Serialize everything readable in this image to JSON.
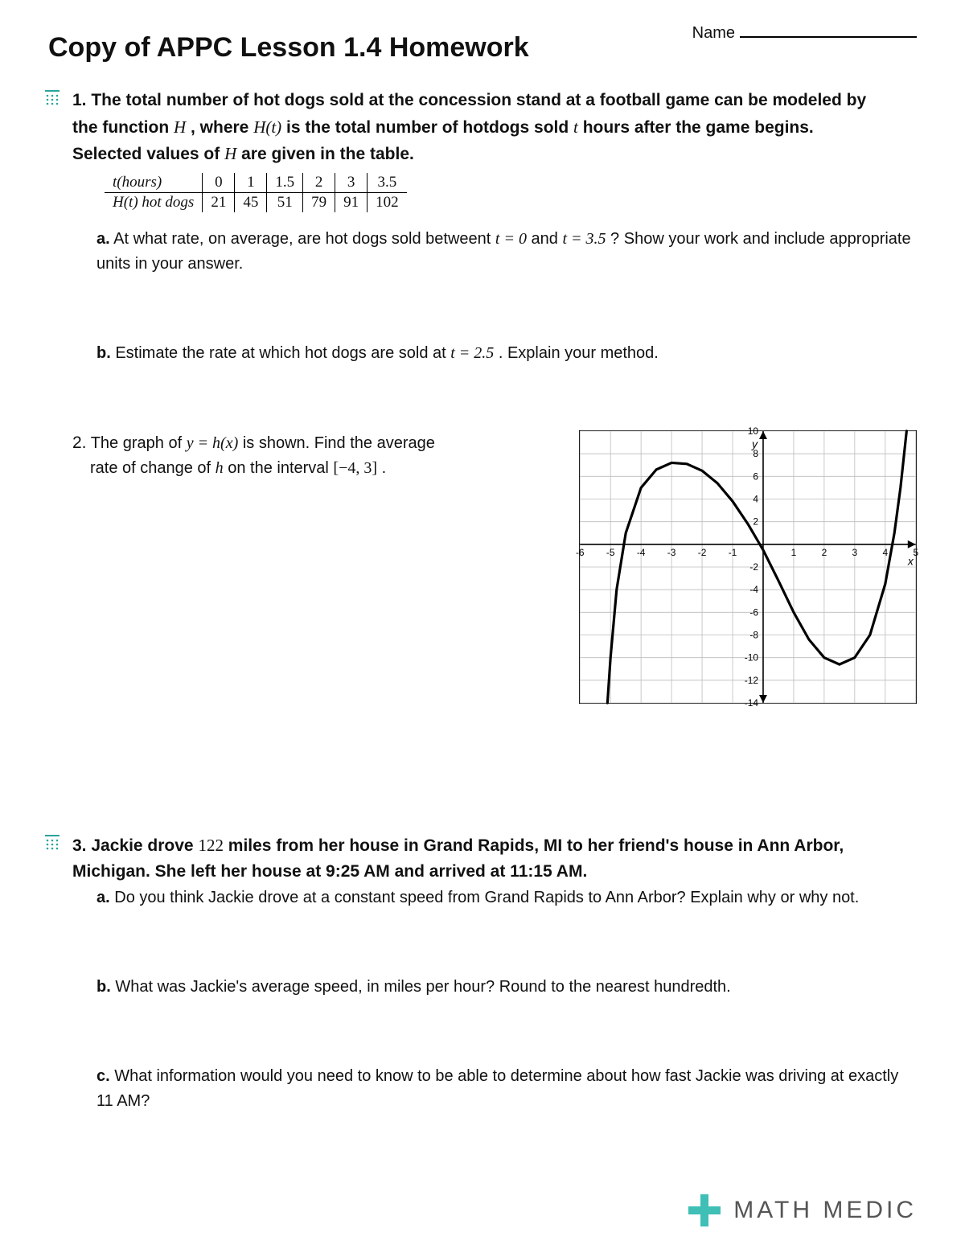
{
  "header": {
    "title": "Copy of APPC Lesson 1.4 Homework",
    "name_label": "Name"
  },
  "icon": {
    "color": "#2aa39a"
  },
  "q1": {
    "number": "1.",
    "line1_a": "The total number of hot dogs sold at the concession stand at a football game can be modeled by",
    "line2_a": "the function ",
    "line2_H": "H",
    "line2_b": " , where ",
    "line2_Ht": "H(t)",
    "line2_c": " is the total number of hotdogs sold ",
    "line2_t": "t",
    "line2_d": " hours after the game begins.",
    "line3": "Selected values of ",
    "line3_H": "H",
    "line3_b": " are given in the table.",
    "table": {
      "row1_label": "t(hours)",
      "row2_label": "H(t) hot dogs",
      "cols": [
        "0",
        "1",
        "1.5",
        "2",
        "3",
        "3.5"
      ],
      "vals": [
        "21",
        "45",
        "51",
        "79",
        "91",
        "102"
      ]
    },
    "a_lbl": "a.",
    "a_txt_1": " At what rate, on average, are hot dogs sold betweent ",
    "a_eq1": "t = 0",
    "a_txt_2": " and ",
    "a_eq2": "t = 3.5",
    "a_txt_3": " ? Show your work and include appropriate units in your answer.",
    "b_lbl": "b.",
    "b_txt_1": " Estimate the rate at which hot dogs are sold at ",
    "b_eq": "t = 2.5",
    "b_txt_2": " . Explain your method."
  },
  "q2": {
    "number": "2.",
    "txt_1": "The graph of ",
    "eq1": "y = h(x)",
    "txt_2": " is shown. Find the average",
    "txt_3": "rate of change of ",
    "var_h": "h",
    "txt_4": " on the interval ",
    "interval": "[−4, 3]",
    "txt_5": " .",
    "chart": {
      "x_range": [
        -6,
        5
      ],
      "y_range": [
        -14,
        10
      ],
      "x_ticks": [
        -6,
        -5,
        -4,
        -3,
        -2,
        -1,
        1,
        2,
        3,
        4,
        5
      ],
      "y_ticks": [
        -14,
        -12,
        -10,
        -8,
        -6,
        -4,
        -2,
        2,
        4,
        6,
        8,
        10
      ],
      "y_label": "y",
      "x_label": "x",
      "grid_color": "#bcbcbc",
      "axis_color": "#000000",
      "curve_color": "#000000",
      "curve_width": 3.2,
      "curve_points": [
        [
          -5.1,
          -14
        ],
        [
          -5,
          -10
        ],
        [
          -4.8,
          -4
        ],
        [
          -4.5,
          1
        ],
        [
          -4,
          5
        ],
        [
          -3.5,
          6.6
        ],
        [
          -3,
          7.2
        ],
        [
          -2.5,
          7.1
        ],
        [
          -2,
          6.5
        ],
        [
          -1.5,
          5.4
        ],
        [
          -1,
          3.8
        ],
        [
          -0.5,
          1.8
        ],
        [
          0,
          -0.5
        ],
        [
          0.5,
          -3.2
        ],
        [
          1,
          -6
        ],
        [
          1.5,
          -8.4
        ],
        [
          2,
          -10
        ],
        [
          2.5,
          -10.6
        ],
        [
          3,
          -10
        ],
        [
          3.5,
          -8
        ],
        [
          4,
          -3.5
        ],
        [
          4.3,
          1
        ],
        [
          4.5,
          5
        ],
        [
          4.7,
          10
        ]
      ]
    }
  },
  "q3": {
    "number": "3.",
    "line1": "Jackie drove ",
    "miles": "122",
    "line1b": " miles from her house in Grand Rapids, MI to her friend's house in Ann Arbor,",
    "line2": "Michigan. She left her house at 9:25 AM and arrived at 11:15 AM.",
    "a_lbl": "a.",
    "a_txt": " Do you think Jackie drove at a constant speed from Grand Rapids to Ann Arbor? Explain why or why not.",
    "b_lbl": "b.",
    "b_txt": " What was Jackie's average speed, in miles per hour? Round to the nearest hundredth.",
    "c_lbl": "c.",
    "c_txt": " What information would you need to know to be able to determine about how fast Jackie was driving at exactly 11 AM?"
  },
  "footer": {
    "brand": "MATH MEDIC",
    "plus_color": "#3fbfb6"
  }
}
